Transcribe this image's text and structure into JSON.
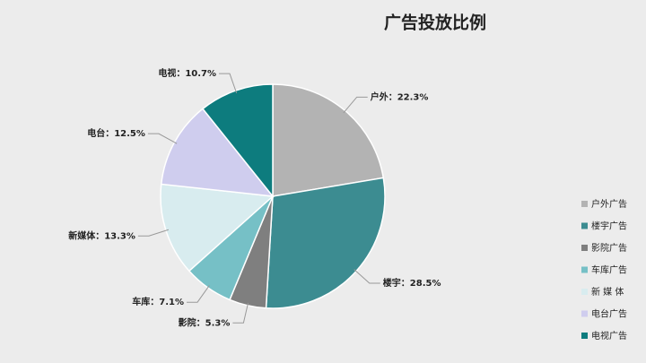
{
  "chart_data": {
    "type": "pie",
    "title": "广告投放比例",
    "categories": [
      "户外广告",
      "楼宇广告",
      "影院广告",
      "车库广告",
      "新 媒 体",
      "电台广告",
      "电视广告"
    ],
    "values": [
      22.3,
      28.5,
      5.3,
      7.1,
      13.3,
      12.5,
      10.7
    ],
    "value_labels": [
      "户外：22.3%",
      "楼宇：28.5%",
      "影院：5.3%",
      "车库：7.1%",
      "新媒体：13.3%",
      "电台：12.5%",
      "电视：10.7%"
    ],
    "colors": [
      "#b3b3b3",
      "#3c8c91",
      "#7f7f7f",
      "#76c0c6",
      "#d8ecef",
      "#cfcdee",
      "#0d7c7e"
    ],
    "legend": "right"
  }
}
